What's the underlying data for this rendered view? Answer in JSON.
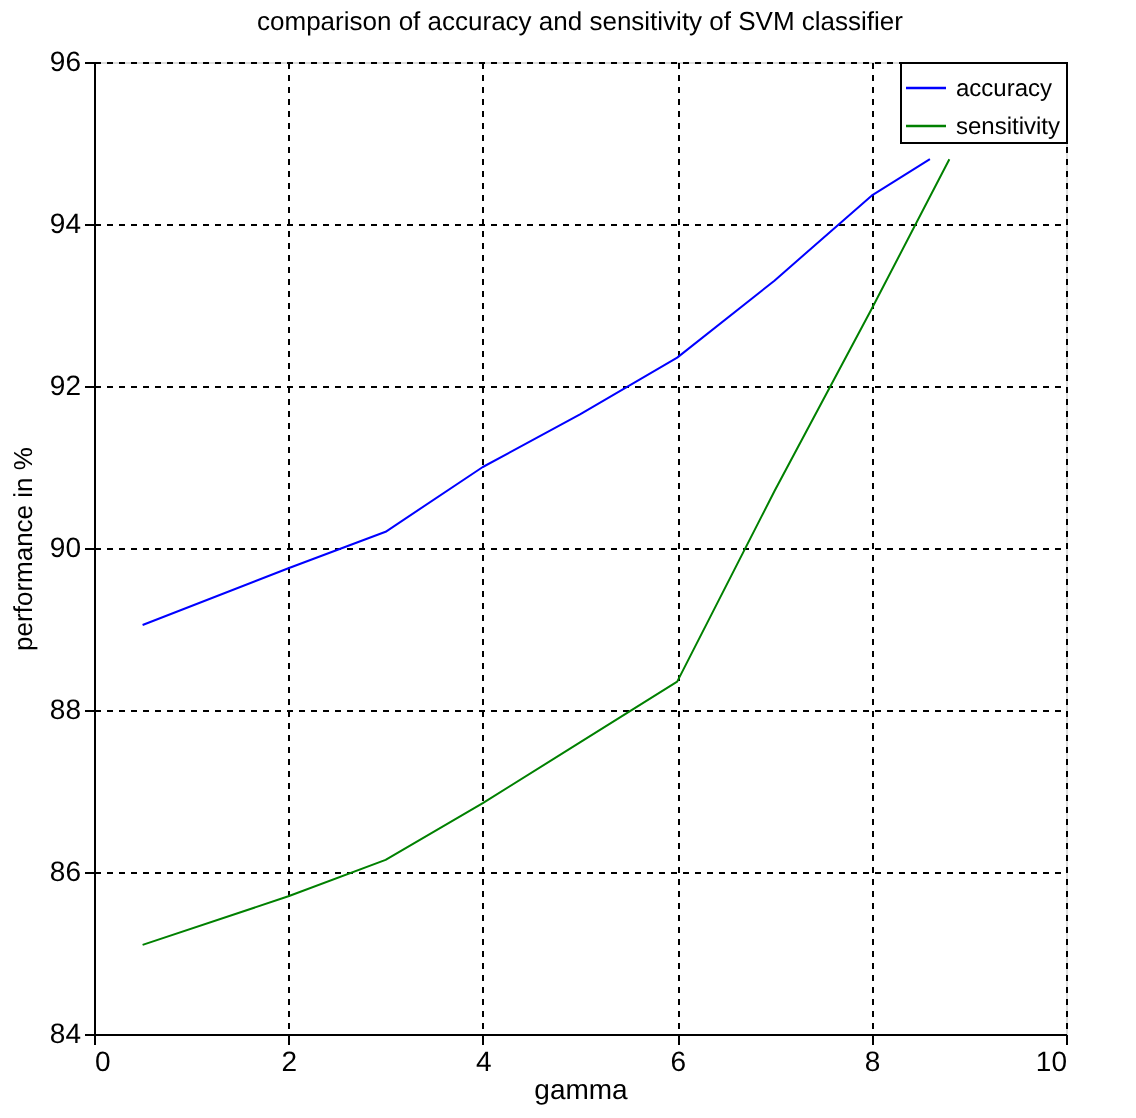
{
  "chart_data": {
    "type": "line",
    "title": "comparison of accuracy and sensitivity of SVM classifier",
    "xlabel": "gamma",
    "ylabel": "performance in %",
    "xlim": [
      0,
      10
    ],
    "ylim": [
      84,
      96
    ],
    "xticks": [
      0,
      2,
      4,
      6,
      8,
      10
    ],
    "yticks": [
      84,
      86,
      88,
      90,
      92,
      94,
      96
    ],
    "grid": true,
    "legend": "top right",
    "line_style": "solid",
    "marker": "none",
    "series": [
      {
        "name": "accuracy",
        "color": "#0000ff",
        "x": [
          0.5,
          2,
          3,
          4,
          5,
          6,
          7,
          8,
          8.6
        ],
        "values": [
          89.05,
          89.75,
          90.2,
          91.0,
          91.65,
          92.35,
          93.3,
          94.35,
          94.8
        ]
      },
      {
        "name": "sensitivity",
        "color": "#008000",
        "x": [
          0.5,
          2,
          3,
          4,
          5,
          6,
          7,
          8,
          8.8
        ],
        "values": [
          85.1,
          85.7,
          86.15,
          86.85,
          87.6,
          88.35,
          90.7,
          92.95,
          94.8
        ]
      }
    ]
  }
}
